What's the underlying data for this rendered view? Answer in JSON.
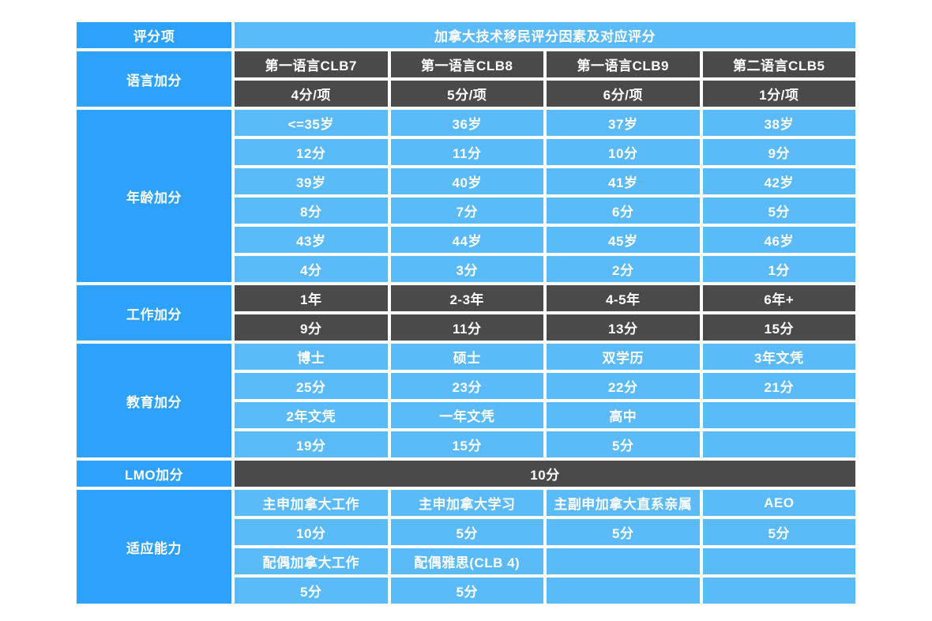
{
  "colors": {
    "accent_blue": "#2EA1FA",
    "light_blue": "#5BBAF8",
    "dark_gray": "#4A4A4A",
    "text_white": "#FFFFFF",
    "background": "#FFFFFF"
  },
  "chart_data": {
    "type": "table",
    "title": "加拿大技术移民评分因素及对应评分",
    "corner_header": "评分项",
    "sections": [
      {
        "label": "语言加分",
        "rows": [
          {
            "style": "dark",
            "cells": [
              "第一语言CLB7",
              "第一语言CLB8",
              "第一语言CLB9",
              "第二语言CLB5"
            ]
          },
          {
            "style": "dark",
            "cells": [
              "4分/项",
              "5分/项",
              "6分/项",
              "1分/项"
            ]
          }
        ]
      },
      {
        "label": "年龄加分",
        "rows": [
          {
            "style": "light",
            "cells": [
              "<=35岁",
              "36岁",
              "37岁",
              "38岁"
            ]
          },
          {
            "style": "light",
            "cells": [
              "12分",
              "11分",
              "10分",
              "9分"
            ]
          },
          {
            "style": "light",
            "cells": [
              "39岁",
              "40岁",
              "41岁",
              "42岁"
            ]
          },
          {
            "style": "light",
            "cells": [
              "8分",
              "7分",
              "6分",
              "5分"
            ]
          },
          {
            "style": "light",
            "cells": [
              "43岁",
              "44岁",
              "45岁",
              "46岁"
            ]
          },
          {
            "style": "light",
            "cells": [
              "4分",
              "3分",
              "2分",
              "1分"
            ]
          }
        ]
      },
      {
        "label": "工作加分",
        "rows": [
          {
            "style": "dark",
            "cells": [
              "1年",
              "2-3年",
              "4-5年",
              "6年+"
            ]
          },
          {
            "style": "dark",
            "cells": [
              "9分",
              "11分",
              "13分",
              "15分"
            ]
          }
        ]
      },
      {
        "label": "教育加分",
        "rows": [
          {
            "style": "light",
            "cells": [
              "博士",
              "硕士",
              "双学历",
              "3年文凭"
            ]
          },
          {
            "style": "light",
            "cells": [
              "25分",
              "23分",
              "22分",
              "21分"
            ]
          },
          {
            "style": "light",
            "cells": [
              "2年文凭",
              "一年文凭",
              "高中",
              ""
            ]
          },
          {
            "style": "light",
            "cells": [
              "19分",
              "15分",
              "5分",
              ""
            ]
          }
        ]
      },
      {
        "label": "LMO加分",
        "rows": [
          {
            "style": "dark",
            "span_all": true,
            "cells": [
              "10分"
            ]
          }
        ]
      },
      {
        "label": "适应能力",
        "rows": [
          {
            "style": "light",
            "cells": [
              "主申加拿大工作",
              "主申加拿大学习",
              "主副申加拿大直系亲属",
              "AEO"
            ]
          },
          {
            "style": "light",
            "cells": [
              "10分",
              "5分",
              "5分",
              "5分"
            ]
          },
          {
            "style": "light",
            "cells": [
              "配偶加拿大工作",
              "配偶雅思(CLB 4)",
              "",
              ""
            ]
          },
          {
            "style": "light",
            "cells": [
              "5分",
              "5分",
              "",
              ""
            ]
          }
        ]
      }
    ]
  }
}
